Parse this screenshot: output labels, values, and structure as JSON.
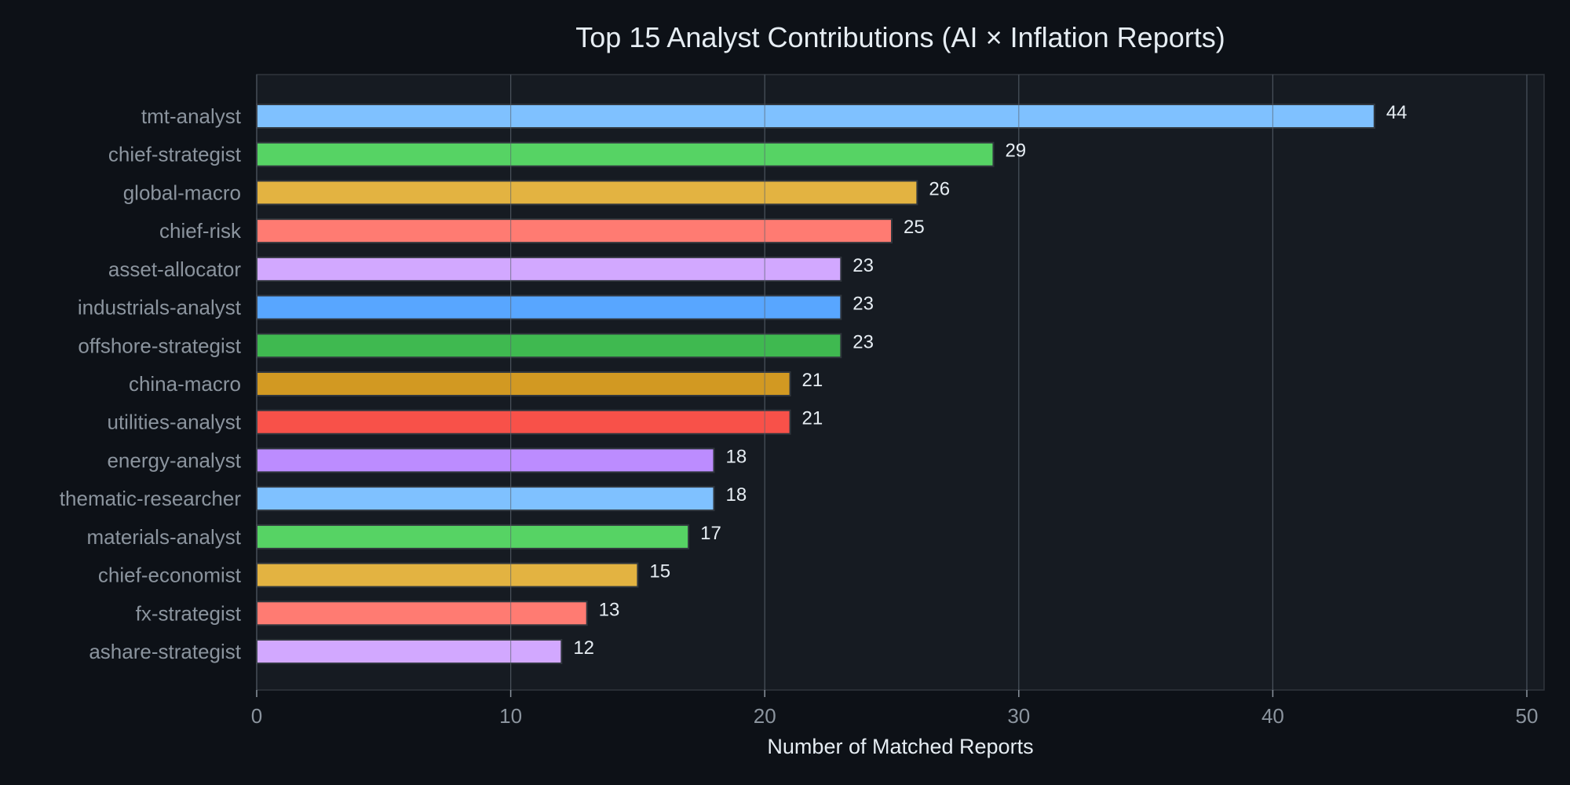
{
  "chart_data": {
    "type": "bar",
    "orientation": "horizontal",
    "title": "Top 15 Analyst Contributions (AI × Inflation Reports)",
    "xlabel": "Number of Matched Reports",
    "ylabel": "",
    "xlim": [
      0,
      50
    ],
    "xticks": [
      0,
      10,
      20,
      30,
      40,
      50
    ],
    "grid": true,
    "categories": [
      "tmt-analyst",
      "chief-strategist",
      "global-macro",
      "chief-risk",
      "asset-allocator",
      "industrials-analyst",
      "offshore-strategist",
      "china-macro",
      "utilities-analyst",
      "energy-analyst",
      "thematic-researcher",
      "materials-analyst",
      "chief-economist",
      "fx-strategist",
      "ashare-strategist"
    ],
    "values": [
      44,
      29,
      26,
      25,
      23,
      23,
      23,
      21,
      21,
      18,
      18,
      17,
      15,
      13,
      12
    ],
    "colors": [
      "#7fc1ff",
      "#56d364",
      "#e3b341",
      "#ff7b72",
      "#d2a8ff",
      "#58a6ff",
      "#3fb950",
      "#d29922",
      "#f85149",
      "#bc8cff",
      "#7fc1ff",
      "#56d364",
      "#e3b341",
      "#ff7b72",
      "#d2a8ff"
    ],
    "theme": {
      "background": "#0d1117",
      "plot_background": "#161b22",
      "axis_color": "#30363d",
      "grid_color": "#30363d",
      "text_color": "#e6edf3",
      "tick_label_color": "#8b949e"
    }
  }
}
